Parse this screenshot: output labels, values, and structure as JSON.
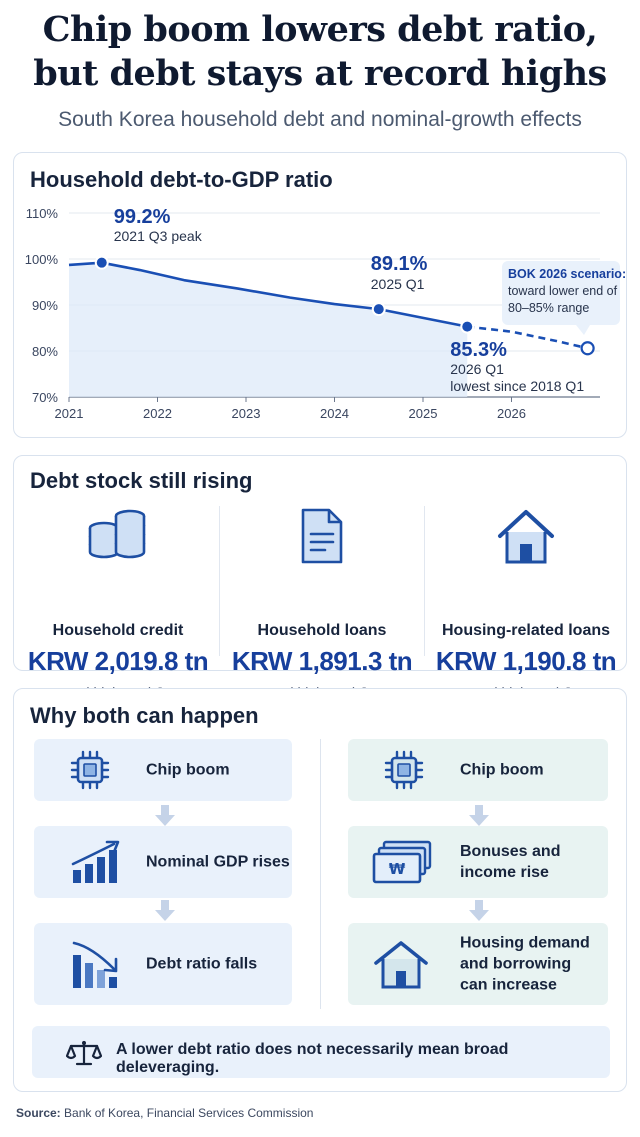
{
  "header": {
    "title_line1": "Chip boom lowers debt ratio,",
    "title_line2": "but debt stays at record highs",
    "subtitle": "South Korea household debt and nominal-growth effects"
  },
  "ratio_panel": {
    "title": "Household debt-to-GDP ratio"
  },
  "chart_data": {
    "type": "line",
    "title": "Household debt-to-GDP ratio",
    "xlabel": "",
    "ylabel": "",
    "ylim": [
      70,
      110
    ],
    "xlim": [
      2021.0,
      2027.0
    ],
    "y_ticks": [
      "70%",
      "80%",
      "90%",
      "100%",
      "110%"
    ],
    "y_tick_values": [
      70,
      80,
      90,
      100,
      110
    ],
    "x_ticks": [
      "2021",
      "2022",
      "2023",
      "2024",
      "2025",
      "2026"
    ],
    "x_tick_values": [
      2021,
      2022,
      2023,
      2024,
      2025,
      2026
    ],
    "grid": "horizontal",
    "series": [
      {
        "style": "solid",
        "points": [
          {
            "x": 2021.0,
            "y": 98.7
          },
          {
            "x": 2021.37,
            "y": 99.2
          },
          {
            "x": 2021.8,
            "y": 97.6
          },
          {
            "x": 2022.3,
            "y": 95.4
          },
          {
            "x": 2022.9,
            "y": 93.6
          },
          {
            "x": 2023.5,
            "y": 91.6
          },
          {
            "x": 2024.0,
            "y": 90.2
          },
          {
            "x": 2024.5,
            "y": 89.1
          },
          {
            "x": 2025.0,
            "y": 87.2
          },
          {
            "x": 2025.5,
            "y": 85.3
          }
        ]
      },
      {
        "style": "dashed",
        "points": [
          {
            "x": 2025.5,
            "y": 85.3
          },
          {
            "x": 2026.0,
            "y": 84.2
          },
          {
            "x": 2026.5,
            "y": 82.2
          },
          {
            "x": 2026.86,
            "y": 80.6
          }
        ]
      }
    ],
    "annotations": [
      {
        "x": 2021.37,
        "y": 99.2,
        "value": "99.2%",
        "label": "2021 Q3 peak"
      },
      {
        "x": 2024.5,
        "y": 89.1,
        "value": "89.1%",
        "label": "2025 Q1"
      },
      {
        "x": 2025.5,
        "y": 85.3,
        "value": "85.3%",
        "label": "2026 Q1",
        "label2": "lowest since 2018 Q1"
      }
    ],
    "callout": {
      "x": 2026.86,
      "y": 80.6,
      "title": "BOK 2026 scenario:",
      "line1": "toward lower end of",
      "line2": "80–85% range"
    },
    "colors": {
      "line": "#1a4fb4",
      "fill": "#dde9f8",
      "grid": "#e3e8ef",
      "callout_bg": "#e9f1fb"
    }
  },
  "stock_panel": {
    "title": "Debt stock still rising",
    "items": [
      {
        "icon": "coins-icon",
        "label": "Household credit",
        "value": "KRW 2,019.8 tn",
        "note": "record high, end-June"
      },
      {
        "icon": "document-icon",
        "label": "Household loans",
        "value": "KRW 1,891.3 tn",
        "note": "record high, end-June"
      },
      {
        "icon": "house-icon",
        "label": "Housing-related loans",
        "value": "KRW 1,190.8 tn",
        "note": "record high, end-June"
      }
    ]
  },
  "why_panel": {
    "title": "Why both can happen",
    "left": [
      {
        "icon": "chip-icon",
        "text": "Chip boom"
      },
      {
        "icon": "rising-bars-icon",
        "text": "Nominal GDP rises"
      },
      {
        "icon": "falling-bars-icon",
        "text": "Debt ratio falls"
      }
    ],
    "right": [
      {
        "icon": "chip-icon",
        "text": "Chip boom"
      },
      {
        "icon": "banknotes-icon",
        "text_line1": "Bonuses and",
        "text_line2": "income rise",
        "currency": "₩"
      },
      {
        "icon": "house-icon",
        "text_line1": "Housing demand",
        "text_line2": "and borrowing",
        "text_line3": "can increase"
      }
    ],
    "bottom_note": "A lower debt ratio does not necessarily mean broad deleveraging."
  },
  "source": {
    "label": "Source:",
    "text": "Bank of Korea, Financial Services Commission"
  },
  "colors": {
    "navy": "#173f9c",
    "icon": "#1e4fa3",
    "icon_fill": "#cfe0f5",
    "blue_box": "#e9f1fb",
    "green_box": "#e8f3f2"
  }
}
